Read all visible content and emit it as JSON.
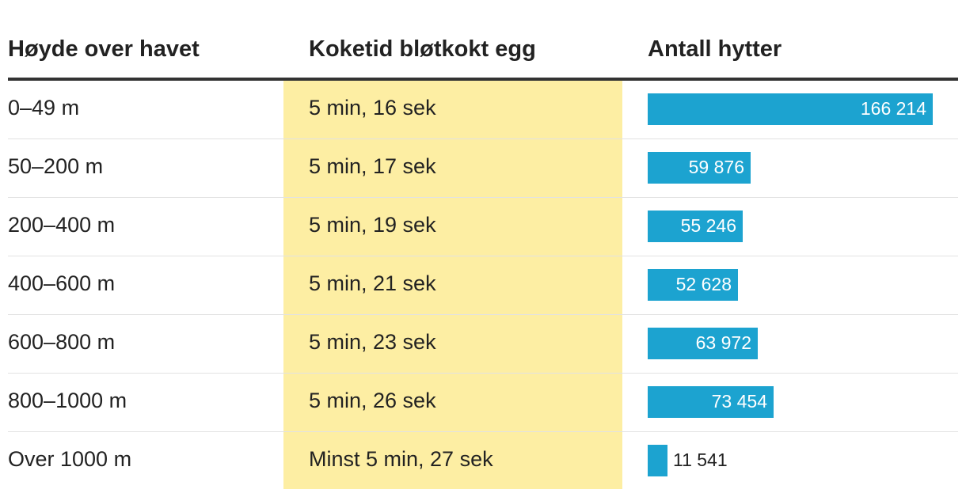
{
  "table": {
    "headers": {
      "altitude": "Høyde over havet",
      "boil_time": "Koketid bløtkokt egg",
      "cabins": "Antall hytter"
    },
    "rows": [
      {
        "altitude": "0–49 m",
        "boil_time": "5 min, 16 sek",
        "cabins_label": "166 214"
      },
      {
        "altitude": "50–200 m",
        "boil_time": "5 min, 17 sek",
        "cabins_label": "59 876"
      },
      {
        "altitude": "200–400 m",
        "boil_time": "5 min, 19 sek",
        "cabins_label": "55 246"
      },
      {
        "altitude": "400–600 m",
        "boil_time": "5 min, 21 sek",
        "cabins_label": "52 628"
      },
      {
        "altitude": "600–800 m",
        "boil_time": "5 min, 23 sek",
        "cabins_label": "63 972"
      },
      {
        "altitude": "800–1000 m",
        "boil_time": "5 min, 26 sek",
        "cabins_label": "73 454"
      },
      {
        "altitude": "Over 1000 m",
        "boil_time": "Minst 5 min, 27 sek",
        "cabins_label": "11 541"
      }
    ]
  },
  "chart_data": {
    "type": "bar",
    "categories": [
      "0–49 m",
      "50–200 m",
      "200–400 m",
      "400–600 m",
      "600–800 m",
      "800–1000 m",
      "Over 1000 m"
    ],
    "values": [
      166214,
      59876,
      55246,
      52628,
      63972,
      73454,
      11541
    ],
    "title": "",
    "xlabel": "",
    "ylabel": "Antall hytter",
    "ylim": [
      0,
      166214
    ],
    "grid": false,
    "orientation": "horizontal"
  },
  "colors": {
    "bar": "#1ca3d0",
    "highlight_column": "#fdeea3",
    "header_rule": "#333333",
    "row_rule": "#e2e2e2"
  }
}
